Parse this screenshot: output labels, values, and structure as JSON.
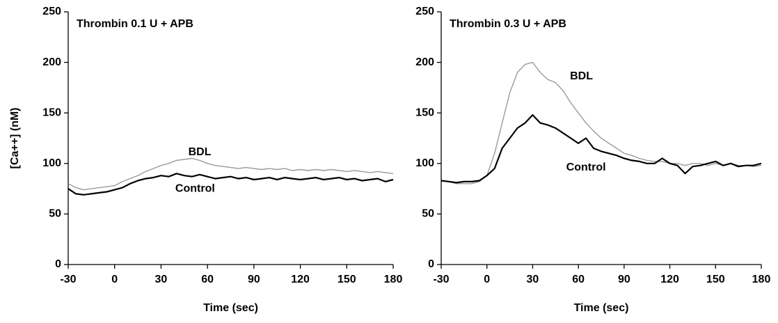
{
  "chart_data": [
    {
      "type": "line",
      "title": "Thrombin 0.1 U + APB",
      "x_label": "Time (sec)",
      "y_label": "[Ca++] (nM)",
      "x": [
        -30,
        -25,
        -20,
        -15,
        -10,
        -5,
        0,
        5,
        10,
        15,
        20,
        25,
        30,
        35,
        40,
        45,
        50,
        55,
        60,
        65,
        70,
        75,
        80,
        85,
        90,
        95,
        100,
        105,
        110,
        115,
        120,
        125,
        130,
        135,
        140,
        145,
        150,
        155,
        160,
        165,
        170,
        175,
        180
      ],
      "series": [
        {
          "name": "BDL",
          "color": "#9a9a9a",
          "values": [
            80,
            76,
            74,
            75,
            76,
            77,
            78,
            82,
            85,
            88,
            92,
            95,
            98,
            100,
            103,
            104,
            105,
            103,
            100,
            98,
            97,
            96,
            95,
            96,
            95,
            94,
            95,
            94,
            95,
            93,
            94,
            93,
            94,
            93,
            94,
            93,
            92,
            93,
            92,
            91,
            92,
            91,
            90
          ]
        },
        {
          "name": "Control",
          "color": "#000000",
          "values": [
            75,
            70,
            69,
            70,
            71,
            72,
            74,
            76,
            80,
            83,
            85,
            86,
            88,
            87,
            90,
            88,
            87,
            89,
            87,
            85,
            86,
            87,
            85,
            86,
            84,
            85,
            86,
            84,
            86,
            85,
            84,
            85,
            86,
            84,
            85,
            86,
            84,
            85,
            83,
            84,
            85,
            82,
            84
          ]
        }
      ],
      "xlim": [
        -30,
        180
      ],
      "xticks": [
        -30,
        0,
        30,
        60,
        90,
        120,
        150,
        180
      ],
      "ylim": [
        0,
        250
      ],
      "yticks": [
        0,
        50,
        100,
        150,
        200,
        250
      ]
    },
    {
      "type": "line",
      "title": "Thrombin 0.3 U + APB",
      "x_label": "Time (sec)",
      "x": [
        -30,
        -25,
        -20,
        -15,
        -10,
        -5,
        0,
        5,
        10,
        15,
        20,
        25,
        30,
        35,
        40,
        45,
        50,
        55,
        60,
        65,
        70,
        75,
        80,
        85,
        90,
        95,
        100,
        105,
        110,
        115,
        120,
        125,
        130,
        135,
        140,
        145,
        150,
        155,
        160,
        165,
        170,
        175,
        180
      ],
      "series": [
        {
          "name": "BDL",
          "color": "#9a9a9a",
          "values": [
            83,
            82,
            80,
            80,
            80,
            82,
            88,
            110,
            140,
            170,
            190,
            198,
            200,
            190,
            183,
            180,
            172,
            160,
            150,
            140,
            132,
            125,
            120,
            115,
            110,
            108,
            105,
            103,
            102,
            102,
            100,
            100,
            98,
            100,
            100,
            98,
            100,
            98,
            100,
            98,
            98,
            97,
            98
          ]
        },
        {
          "name": "Control",
          "color": "#000000",
          "values": [
            83,
            82,
            81,
            82,
            82,
            83,
            88,
            95,
            115,
            125,
            135,
            140,
            148,
            140,
            138,
            135,
            130,
            125,
            120,
            125,
            115,
            112,
            110,
            108,
            105,
            103,
            102,
            100,
            100,
            105,
            100,
            98,
            90,
            97,
            98,
            100,
            102,
            98,
            100,
            97,
            98,
            98,
            100
          ]
        }
      ],
      "xlim": [
        -30,
        180
      ],
      "xticks": [
        -30,
        0,
        30,
        60,
        90,
        120,
        150,
        180
      ],
      "ylim": [
        0,
        250
      ],
      "yticks": [
        0,
        50,
        100,
        150,
        200,
        250
      ]
    }
  ]
}
